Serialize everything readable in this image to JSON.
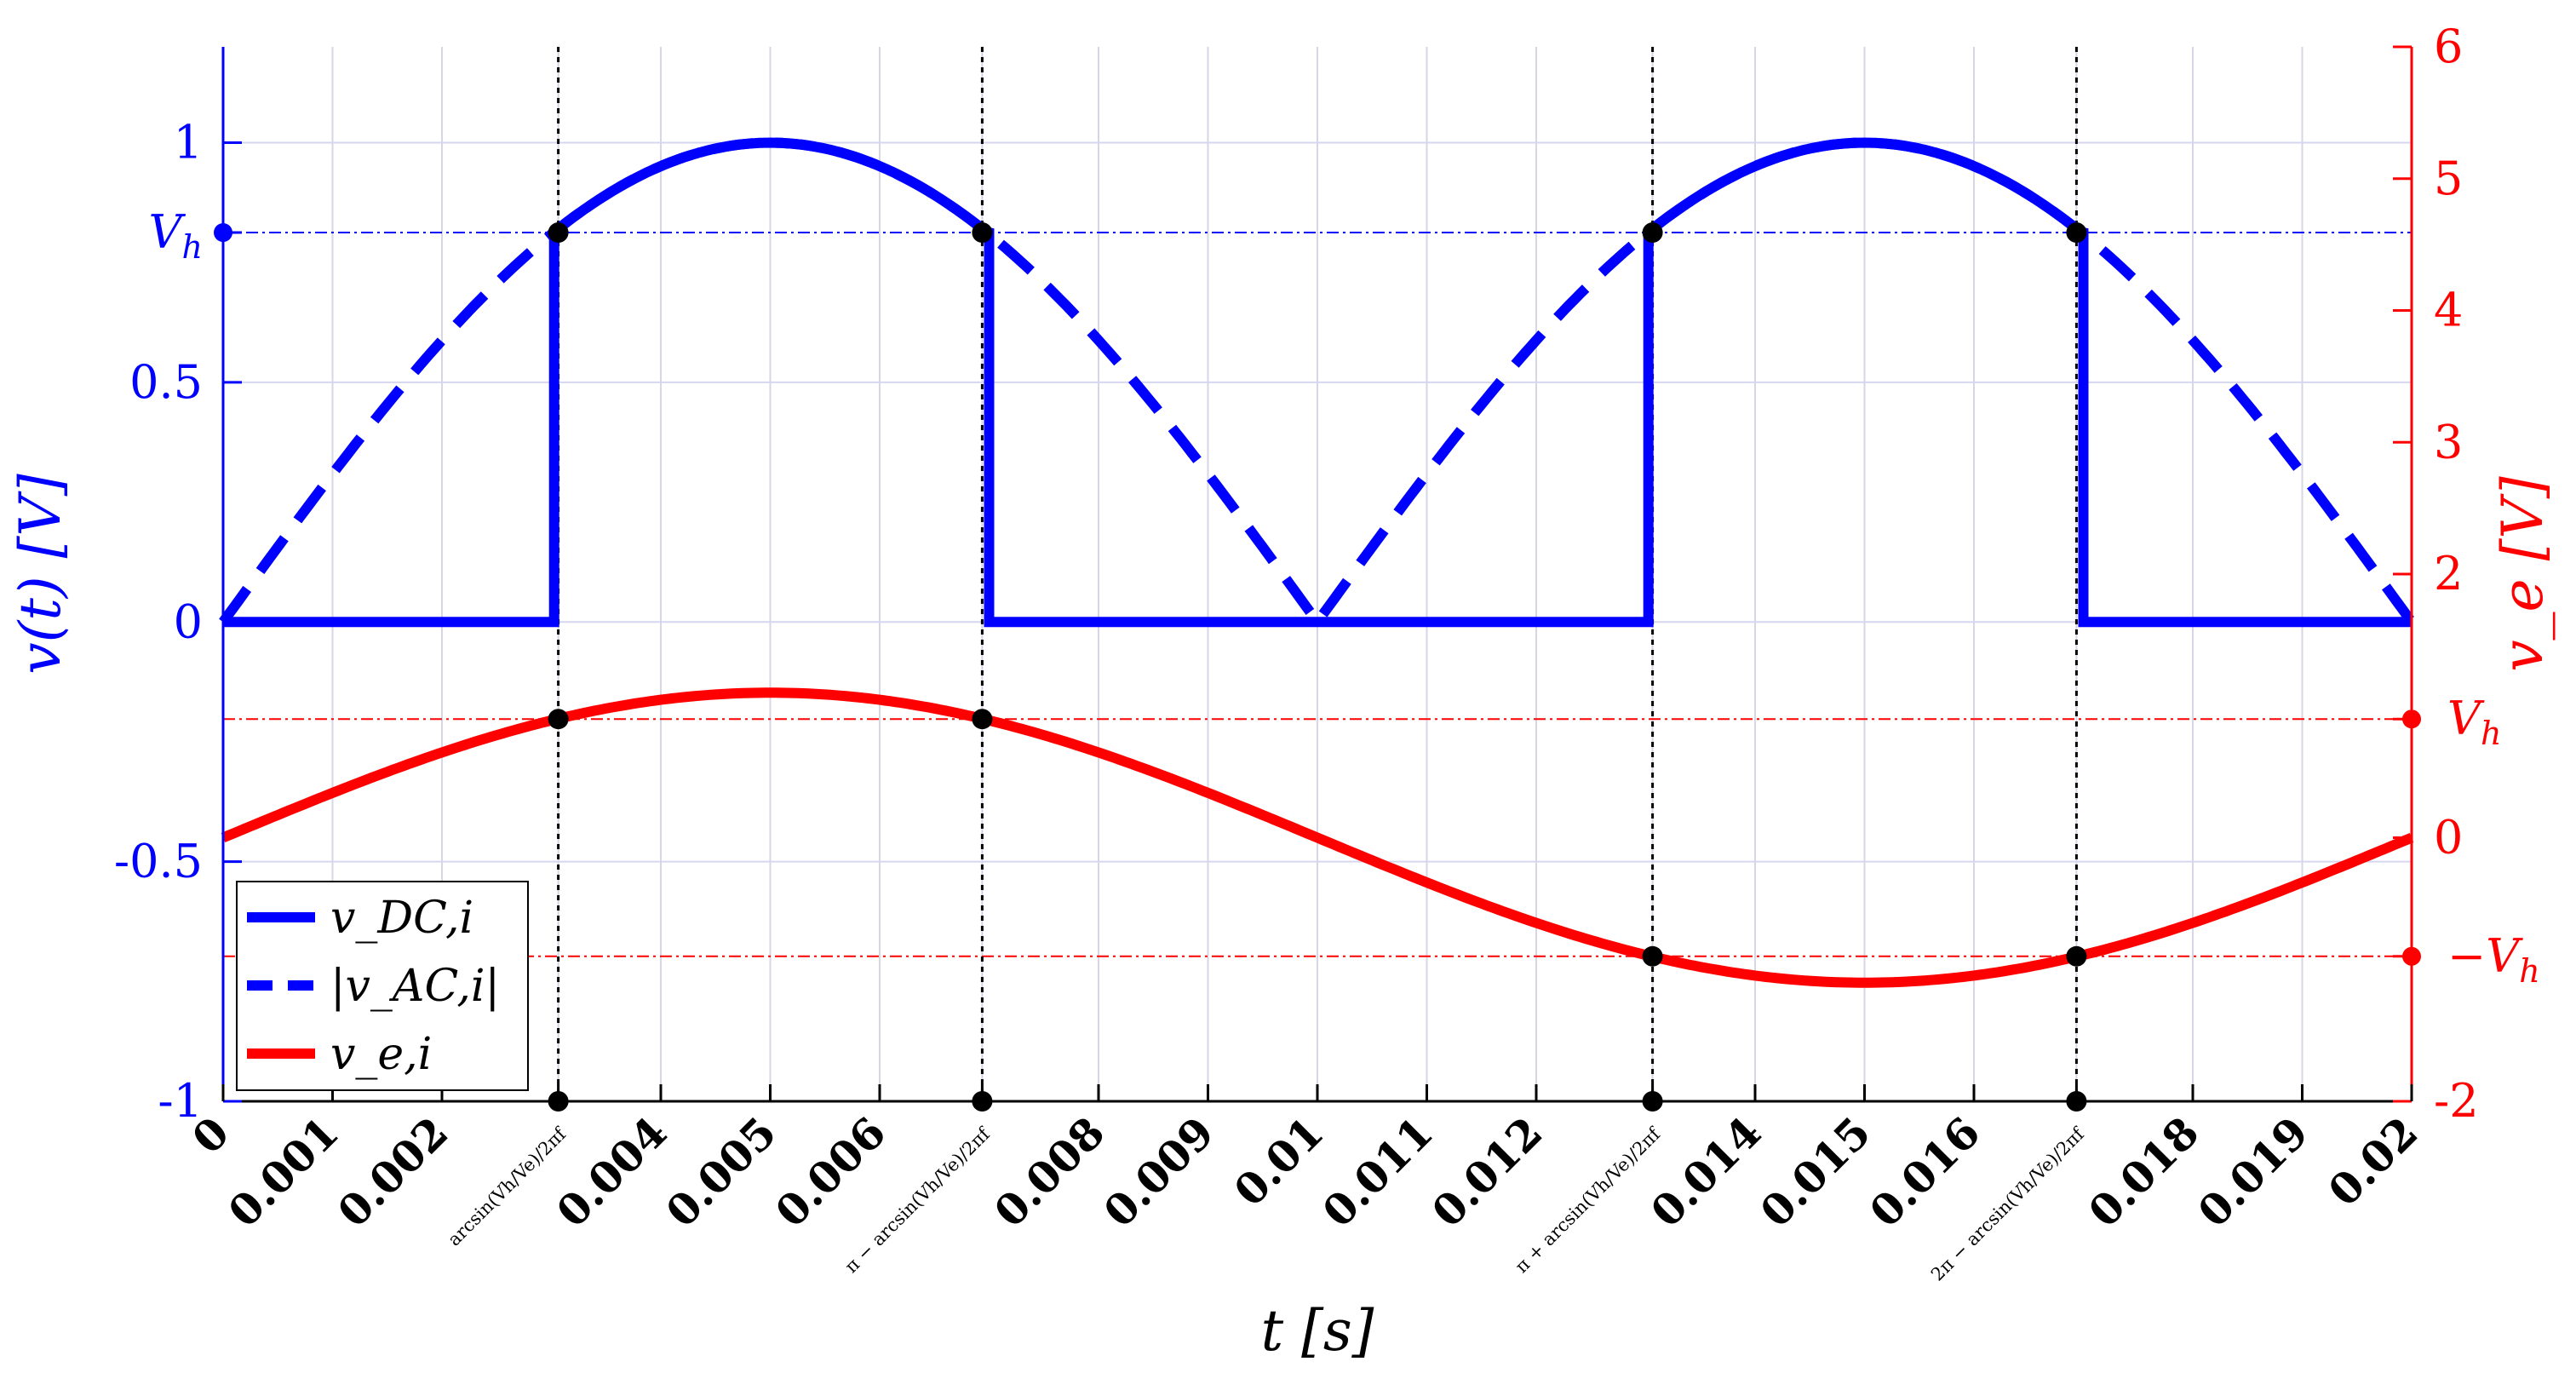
{
  "chart_data": {
    "type": "line",
    "xlabel": "t  [s]",
    "ylabel_left": "v(t)  [V]",
    "ylabel_right": "v_e  [V]",
    "xlim": [
      0,
      0.02
    ],
    "ylim_left": [
      -1,
      1.2
    ],
    "ylim_right": [
      -2,
      6
    ],
    "grid": true,
    "legend_placement": "bottom-left",
    "frequency": 50,
    "x_ticks": [
      {
        "x": 0,
        "label": "0"
      },
      {
        "x": 0.001,
        "label": "0.001"
      },
      {
        "x": 0.002,
        "label": "0.002"
      },
      {
        "x": 0.003063,
        "label": "arcsin(Vh/Ve)/2πf"
      },
      {
        "x": 0.004,
        "label": "0.004"
      },
      {
        "x": 0.005,
        "label": "0.005"
      },
      {
        "x": 0.006,
        "label": "0.006"
      },
      {
        "x": 0.006937,
        "label": "π − arcsin(Vh/Ve)/2πf"
      },
      {
        "x": 0.008,
        "label": "0.008"
      },
      {
        "x": 0.009,
        "label": "0.009"
      },
      {
        "x": 0.01,
        "label": "0.01"
      },
      {
        "x": 0.011,
        "label": "0.011"
      },
      {
        "x": 0.012,
        "label": "0.012"
      },
      {
        "x": 0.013063,
        "label": "π + arcsin(Vh/Ve)/2πf"
      },
      {
        "x": 0.014,
        "label": "0.014"
      },
      {
        "x": 0.015,
        "label": "0.015"
      },
      {
        "x": 0.016,
        "label": "0.016"
      },
      {
        "x": 0.016937,
        "label": "2π − arcsin(Vh/Ve)/2πf"
      },
      {
        "x": 0.018,
        "label": "0.018"
      },
      {
        "x": 0.019,
        "label": "0.019"
      },
      {
        "x": 0.02,
        "label": "0.02"
      }
    ],
    "y_ticks_left": [
      {
        "y": -1,
        "label": "-1"
      },
      {
        "y": -0.5,
        "label": "-0.5"
      },
      {
        "y": 0,
        "label": "0"
      },
      {
        "y": 0.5,
        "label": "0.5"
      },
      {
        "y": 0.8125,
        "label": "Vh"
      },
      {
        "y": 1,
        "label": "1"
      }
    ],
    "y_ticks_right": [
      {
        "y": -2,
        "label": "-2"
      },
      {
        "y": -0.9,
        "label": "−Vh"
      },
      {
        "y": 0,
        "label": "0"
      },
      {
        "y": 0.9,
        "label": "Vh"
      },
      {
        "y": 2,
        "label": "2"
      },
      {
        "y": 3,
        "label": "3"
      },
      {
        "y": 4,
        "label": "4"
      },
      {
        "y": 5,
        "label": "5"
      },
      {
        "y": 6,
        "label": "6"
      }
    ],
    "Vh_left": 0.8125,
    "Vh_right": 0.9,
    "Ve_amplitude": 1.1,
    "series": [
      {
        "name": "v_DC,i",
        "axis": "left",
        "style": "solid",
        "color": "#0000ff",
        "description_points": [
          [
            0,
            0
          ],
          [
            0.003063,
            0
          ],
          [
            0.003063,
            0.8125
          ],
          [
            0.005,
            1
          ],
          [
            0.006937,
            0.8125
          ],
          [
            0.006937,
            0
          ],
          [
            0.013063,
            0
          ],
          [
            0.013063,
            0.8125
          ],
          [
            0.015,
            1
          ],
          [
            0.016937,
            0.8125
          ],
          [
            0.016937,
            0
          ],
          [
            0.02,
            0
          ]
        ]
      },
      {
        "name": "|v_AC,i|",
        "axis": "left",
        "style": "dashed",
        "color": "#0000ff",
        "description_points": [
          [
            0,
            0
          ],
          [
            0.0025,
            0.7071
          ],
          [
            0.005,
            1
          ],
          [
            0.0075,
            0.7071
          ],
          [
            0.01,
            0
          ],
          [
            0.0125,
            0.7071
          ],
          [
            0.015,
            1
          ],
          [
            0.0175,
            0.7071
          ],
          [
            0.02,
            0
          ]
        ]
      },
      {
        "name": "v_e,i",
        "axis": "right",
        "style": "solid",
        "color": "#ff0000",
        "description_points": [
          [
            0,
            0
          ],
          [
            0.0025,
            0.778
          ],
          [
            0.005,
            1.1
          ],
          [
            0.0075,
            0.778
          ],
          [
            0.01,
            0
          ],
          [
            0.0125,
            -0.778
          ],
          [
            0.015,
            -1.1
          ],
          [
            0.0175,
            -0.778
          ],
          [
            0.02,
            0
          ]
        ]
      }
    ],
    "legend": [
      {
        "label": "v_DC,i",
        "color": "#0000ff",
        "style": "solid"
      },
      {
        "label": "|v_AC,i|",
        "color": "#0000ff",
        "style": "dashed"
      },
      {
        "label": "v_e,i",
        "color": "#ff0000",
        "style": "solid"
      }
    ],
    "colors": {
      "left_axis": "#0000ff",
      "right_axis": "#ff0000",
      "markers": "#000000"
    }
  }
}
